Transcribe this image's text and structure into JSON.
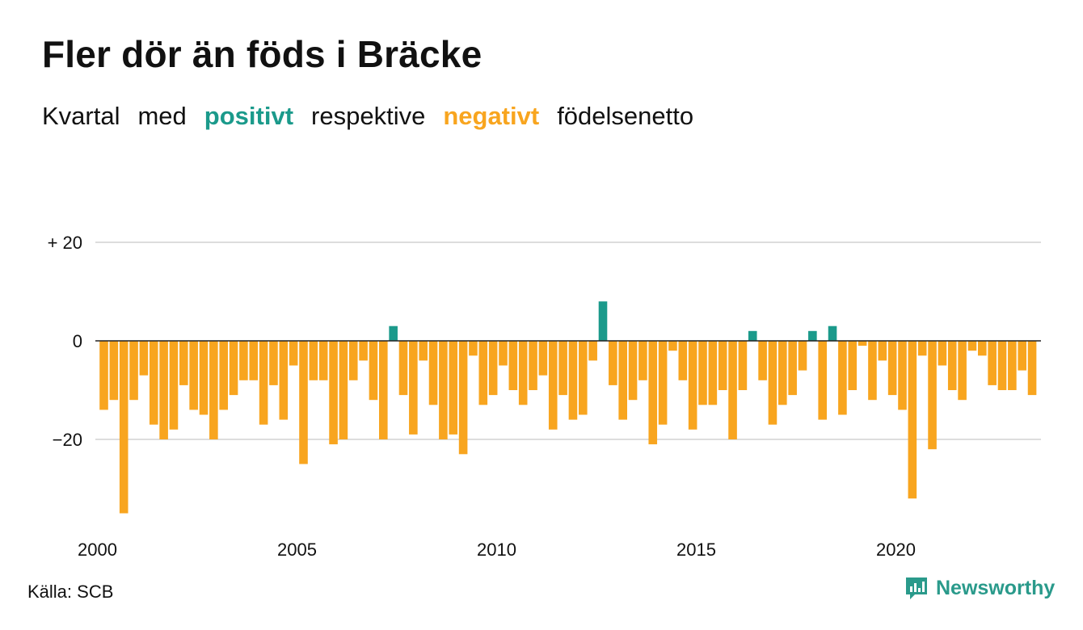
{
  "title": "Fler dör än föds i Bräcke",
  "subtitle": {
    "w1": "Kvartal",
    "w2": "med",
    "pos": "positivt",
    "w3": "respektive",
    "neg": "negativt",
    "w4": "födelsenetto"
  },
  "colors": {
    "positive": "#1b9a8b",
    "negative": "#f8a51f",
    "grid": "#dddddd",
    "zero": "#222222"
  },
  "source": "Källa: SCB",
  "brand": "Newsworthy",
  "chart_data": {
    "type": "bar",
    "x_start": 2000,
    "x_step": 0.25,
    "y_ticks": [
      {
        "value": 20,
        "label": "+ 20"
      },
      {
        "value": 0,
        "label": "0"
      },
      {
        "value": -20,
        "label": "−20"
      }
    ],
    "x_ticks": [
      2000,
      2005,
      2010,
      2015,
      2020
    ],
    "ylim": [
      -40,
      20
    ],
    "values": [
      -14,
      -12,
      -35,
      -12,
      -7,
      -17,
      -20,
      -18,
      -9,
      -14,
      -15,
      -20,
      -14,
      -11,
      -8,
      -8,
      -17,
      -9,
      -16,
      -5,
      -25,
      -8,
      -8,
      -21,
      -20,
      -8,
      -4,
      -12,
      -20,
      3,
      -11,
      -19,
      -4,
      -13,
      -20,
      -19,
      -23,
      -3,
      -13,
      -11,
      -5,
      -10,
      -13,
      -10,
      -7,
      -18,
      -11,
      -16,
      -15,
      -4,
      8,
      -9,
      -16,
      -12,
      -8,
      -21,
      -17,
      -2,
      -8,
      -18,
      -13,
      -13,
      -10,
      -20,
      -10,
      2,
      -8,
      -17,
      -13,
      -11,
      -6,
      2,
      -16,
      3,
      -15,
      -10,
      -1,
      -12,
      -4,
      -11,
      -14,
      -32,
      -3,
      -22,
      -5,
      -10,
      -12,
      -2,
      -3,
      -9,
      -10,
      -10,
      -6,
      -11
    ]
  }
}
